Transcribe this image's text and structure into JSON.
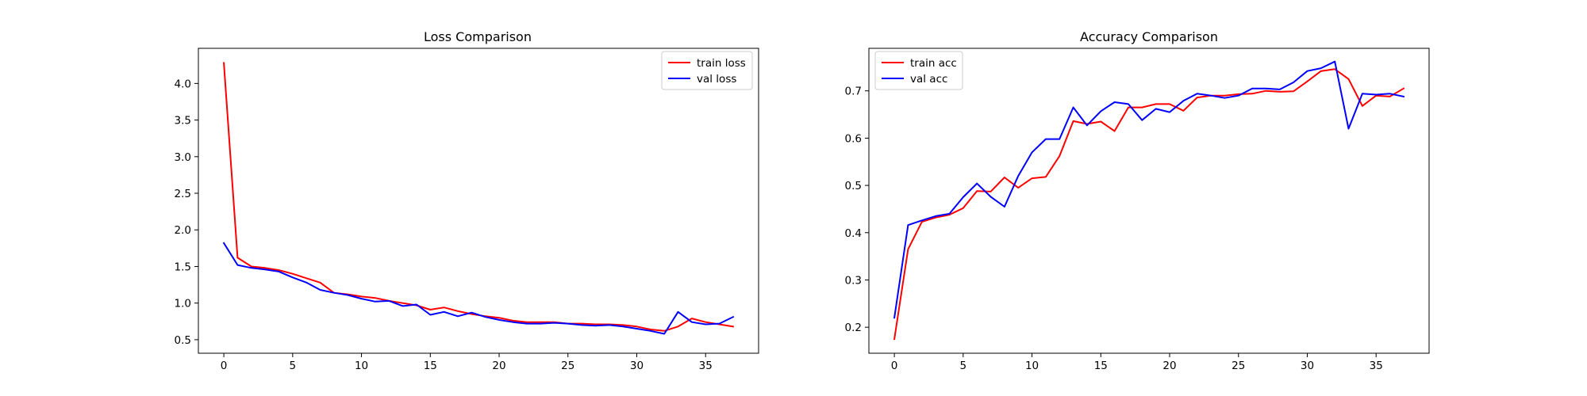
{
  "colors": {
    "train": "#ff0000",
    "val": "#0000ff",
    "axes": "#000000",
    "background": "#ffffff"
  },
  "chart_data": [
    {
      "type": "line",
      "title": "Loss Comparison",
      "xlabel": "",
      "ylabel": "",
      "xlim": [
        -1.85,
        38.85
      ],
      "ylim": [
        0.315,
        4.48
      ],
      "xticks": [
        0,
        5,
        10,
        15,
        20,
        25,
        30,
        35
      ],
      "yticks": [
        0.5,
        1.0,
        1.5,
        2.0,
        2.5,
        3.0,
        3.5,
        4.0
      ],
      "ytick_labels": [
        "0.5",
        "1.0",
        "1.5",
        "2.0",
        "2.5",
        "3.0",
        "3.5",
        "4.0"
      ],
      "grid": false,
      "legend_position": "upper-right",
      "x": [
        0,
        1,
        2,
        3,
        4,
        5,
        6,
        7,
        8,
        9,
        10,
        11,
        12,
        13,
        14,
        15,
        16,
        17,
        18,
        19,
        20,
        21,
        22,
        23,
        24,
        25,
        26,
        27,
        28,
        29,
        30,
        31,
        32,
        33,
        34,
        35,
        36,
        37
      ],
      "series": [
        {
          "name": "train loss",
          "color": "#ff0000",
          "values": [
            4.28,
            1.62,
            1.5,
            1.48,
            1.45,
            1.4,
            1.34,
            1.28,
            1.14,
            1.12,
            1.09,
            1.07,
            1.03,
            1.0,
            0.97,
            0.91,
            0.94,
            0.89,
            0.85,
            0.82,
            0.8,
            0.76,
            0.74,
            0.74,
            0.74,
            0.72,
            0.72,
            0.71,
            0.71,
            0.7,
            0.68,
            0.64,
            0.62,
            0.68,
            0.79,
            0.74,
            0.71,
            0.68
          ]
        },
        {
          "name": "val loss",
          "color": "#0000ff",
          "values": [
            1.82,
            1.52,
            1.48,
            1.46,
            1.43,
            1.35,
            1.28,
            1.18,
            1.14,
            1.11,
            1.06,
            1.02,
            1.03,
            0.96,
            0.98,
            0.84,
            0.88,
            0.82,
            0.87,
            0.81,
            0.77,
            0.74,
            0.72,
            0.72,
            0.73,
            0.72,
            0.7,
            0.69,
            0.7,
            0.68,
            0.65,
            0.62,
            0.58,
            0.88,
            0.74,
            0.71,
            0.72,
            0.81
          ]
        }
      ]
    },
    {
      "type": "line",
      "title": "Accuracy Comparison",
      "xlabel": "",
      "ylabel": "",
      "xlim": [
        -1.85,
        38.85
      ],
      "ylim": [
        0.145,
        0.79
      ],
      "xticks": [
        0,
        5,
        10,
        15,
        20,
        25,
        30,
        35
      ],
      "yticks": [
        0.2,
        0.3,
        0.4,
        0.5,
        0.6,
        0.7
      ],
      "ytick_labels": [
        "0.2",
        "0.3",
        "0.4",
        "0.5",
        "0.6",
        "0.7"
      ],
      "grid": false,
      "legend_position": "upper-left",
      "x": [
        0,
        1,
        2,
        3,
        4,
        5,
        6,
        7,
        8,
        9,
        10,
        11,
        12,
        13,
        14,
        15,
        16,
        17,
        18,
        19,
        20,
        21,
        22,
        23,
        24,
        25,
        26,
        27,
        28,
        29,
        30,
        31,
        32,
        33,
        34,
        35,
        36,
        37
      ],
      "series": [
        {
          "name": "train acc",
          "color": "#ff0000",
          "values": [
            0.175,
            0.365,
            0.423,
            0.432,
            0.438,
            0.452,
            0.488,
            0.487,
            0.517,
            0.495,
            0.515,
            0.518,
            0.562,
            0.636,
            0.63,
            0.635,
            0.615,
            0.665,
            0.665,
            0.672,
            0.672,
            0.658,
            0.686,
            0.69,
            0.69,
            0.693,
            0.694,
            0.7,
            0.698,
            0.699,
            0.72,
            0.742,
            0.746,
            0.725,
            0.668,
            0.69,
            0.688,
            0.705
          ]
        },
        {
          "name": "val acc",
          "color": "#0000ff",
          "values": [
            0.22,
            0.416,
            0.426,
            0.435,
            0.44,
            0.475,
            0.504,
            0.476,
            0.455,
            0.52,
            0.57,
            0.598,
            0.598,
            0.665,
            0.627,
            0.657,
            0.676,
            0.672,
            0.638,
            0.662,
            0.655,
            0.679,
            0.694,
            0.69,
            0.685,
            0.69,
            0.705,
            0.705,
            0.703,
            0.718,
            0.742,
            0.748,
            0.762,
            0.62,
            0.694,
            0.692,
            0.694,
            0.688
          ]
        }
      ]
    }
  ]
}
